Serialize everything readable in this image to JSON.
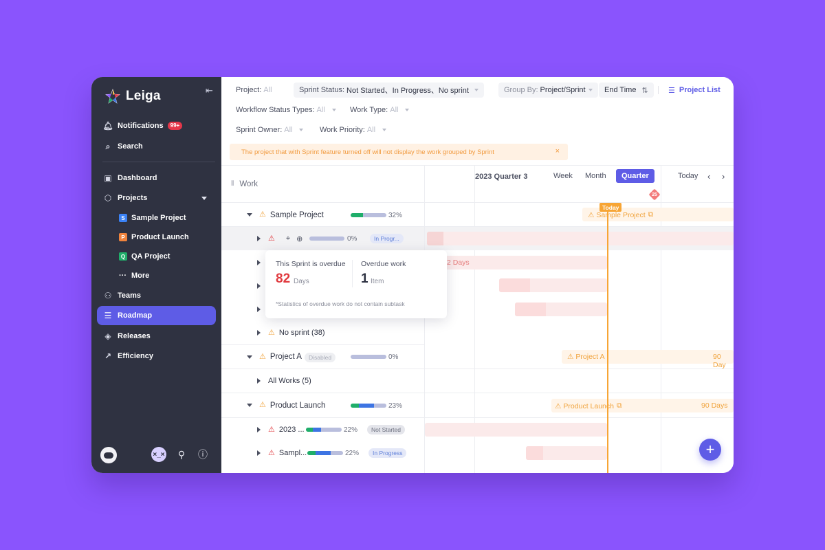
{
  "app": {
    "name": "Leiga"
  },
  "sidebar": {
    "notifications": {
      "label": "Notifications",
      "badge": "99+"
    },
    "search": "Search",
    "dashboard": "Dashboard",
    "projects": "Projects",
    "project_items": [
      {
        "initial": "S",
        "label": "Sample Project",
        "color": "#3B82F6"
      },
      {
        "initial": "P",
        "label": "Product Launch",
        "color": "#F0833C"
      },
      {
        "initial": "Q",
        "label": "QA Project",
        "color": "#1FAE6A"
      }
    ],
    "more": "More",
    "teams": "Teams",
    "roadmap": "Roadmap",
    "releases": "Releases",
    "efficiency": "Efficiency"
  },
  "filters": {
    "project": {
      "label": "Project:",
      "value": "All"
    },
    "sprint_status": {
      "label": "Sprint Status:",
      "value": "Not Started、In Progress、No sprint"
    },
    "group_by": {
      "label": "Group By:",
      "value": "Project/Sprint"
    },
    "end_time": "End Time",
    "project_list": "Project List",
    "workflow_status": {
      "label": "Workflow Status Types:",
      "value": "All"
    },
    "work_type": {
      "label": "Work Type:",
      "value": "All"
    },
    "sprint_owner": {
      "label": "Sprint Owner:",
      "value": "All"
    },
    "work_priority": {
      "label": "Work Priority:",
      "value": "All"
    }
  },
  "notice": "The project that with Sprint feature turned off will not display the work grouped by Sprint",
  "work_header": "Work",
  "rows": {
    "sample_project": {
      "name": "Sample Project",
      "pct": "32%",
      "progress": 0.32
    },
    "sprint_row": {
      "pct": "0%",
      "status": "In Progr..."
    },
    "no_sprint": "No sprint (38)",
    "project_a": {
      "name": "Project A",
      "tag": "Disabled",
      "pct": "0%"
    },
    "all_works": "All Works (5)",
    "product_launch": {
      "name": "Product Launch",
      "pct": "23%",
      "progress": 0.23
    },
    "sprint_2023": {
      "name": "2023 ...",
      "pct": "22%",
      "status": "Not Started",
      "progress": 0.22
    },
    "sprint_sample": {
      "name": "Sampl...",
      "pct": "22%",
      "status": "In Progress",
      "progress": 0.22
    }
  },
  "tooltip": {
    "overdue_label": "This Sprint is overdue",
    "overdue_value": "82",
    "overdue_unit": "Days",
    "work_label": "Overdue work",
    "work_value": "1",
    "work_unit": "Item",
    "note": "*Statistics of overdue work do not contain subtask"
  },
  "timeline": {
    "period": "2023 Quarter 3",
    "week": "Week",
    "month": "Month",
    "quarter": "Quarter",
    "today_btn": "Today",
    "today_tag": "Today",
    "milestone": "25",
    "bar_labels": {
      "sample_project": "Sample Project",
      "days_fragment": "2 Days",
      "project_a": "Project A",
      "project_a_days": "90 Day",
      "product_launch": "Product Launch",
      "product_launch_days": "90 Days"
    }
  },
  "colors": {
    "accent": "#5E5CE6",
    "sidebar": "#2F3241",
    "background": "#8A54FD",
    "today": "#F7A535"
  }
}
